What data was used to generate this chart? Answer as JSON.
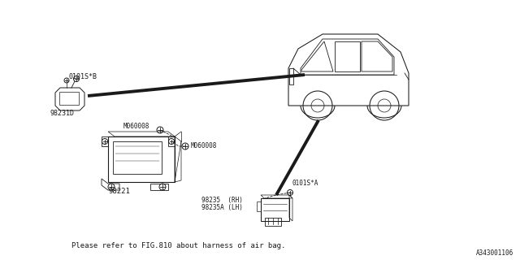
{
  "bg_color": "#ffffff",
  "line_color": "#1a1a1a",
  "text_color": "#1a1a1a",
  "fig_width": 6.4,
  "fig_height": 3.2,
  "dpi": 100,
  "footnote": "Please refer to FIG.810 about harness of air bag.",
  "part_id": "A343001106",
  "label_sensor_top": "0101S*B",
  "label_sensor_top_part": "98231D",
  "label_bolt1": "M060008",
  "label_bolt2": "M060008",
  "label_ecm": "98221",
  "label_airbag1": "98235  (RH)",
  "label_airbag2": "98235A (LH)",
  "label_sensor_bot": "0101S*A"
}
